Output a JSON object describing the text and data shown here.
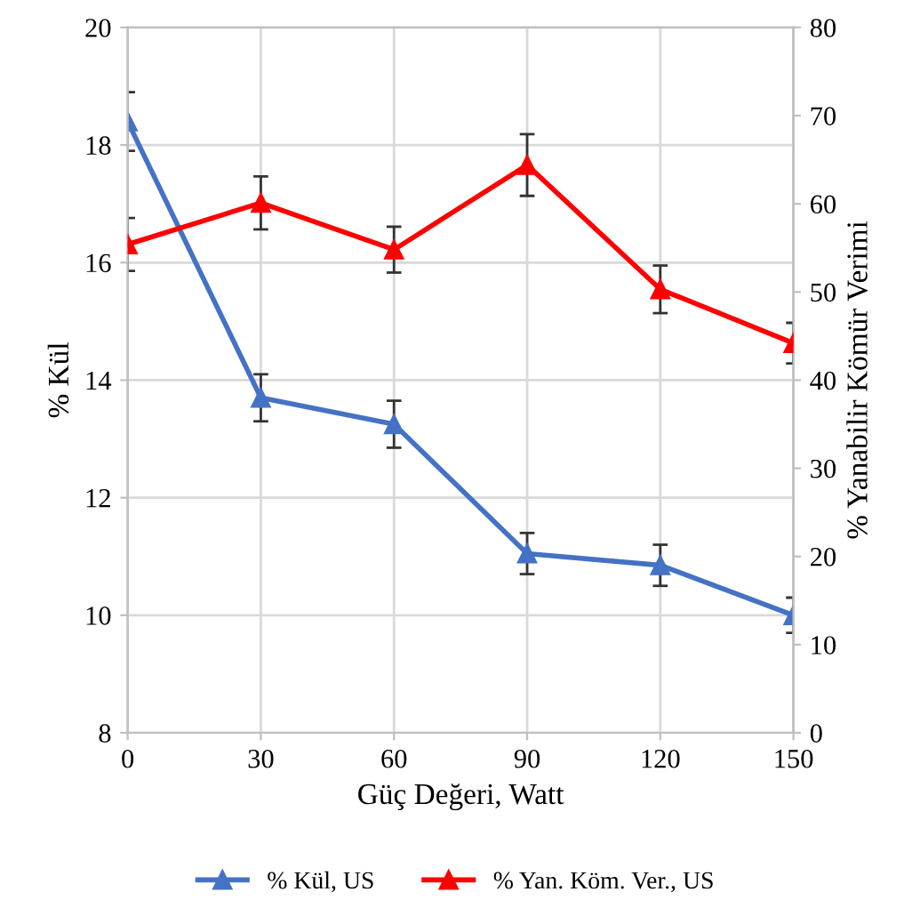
{
  "chart_data": {
    "type": "line",
    "x": [
      0,
      30,
      60,
      90,
      120,
      150
    ],
    "xlabel": "Güç Değeri, Watt",
    "ylabel": "% Kül",
    "y2label": "% Yanabilir Kömür Verimi",
    "xlim": [
      0,
      150
    ],
    "xticks": [
      0,
      30,
      60,
      90,
      120,
      150
    ],
    "ylim": [
      8,
      20
    ],
    "yticks": [
      8,
      10,
      12,
      14,
      16,
      18,
      20
    ],
    "y2lim": [
      0,
      80
    ],
    "y2ticks": [
      0,
      10,
      20,
      30,
      40,
      50,
      60,
      70,
      80
    ],
    "grid": true,
    "legend": "bottom",
    "marker": "triangle",
    "line_style": "solid",
    "series": [
      {
        "name": "% Kül, US",
        "color": "#4472c4",
        "values": [
          18.4,
          13.7,
          13.25,
          11.05,
          10.85,
          10.0
        ],
        "errors": [
          0.5,
          0.4,
          0.4,
          0.35,
          0.35,
          0.3
        ]
      },
      {
        "name": "% Yan. Köm. Ver., US",
        "color": "#ff0000",
        "axis": "y2",
        "values": [
          55.4,
          60.1,
          54.8,
          64.4,
          50.3,
          44.2
        ],
        "errors": [
          3,
          3,
          2.6,
          3.5,
          2.7,
          2.3
        ]
      }
    ]
  }
}
